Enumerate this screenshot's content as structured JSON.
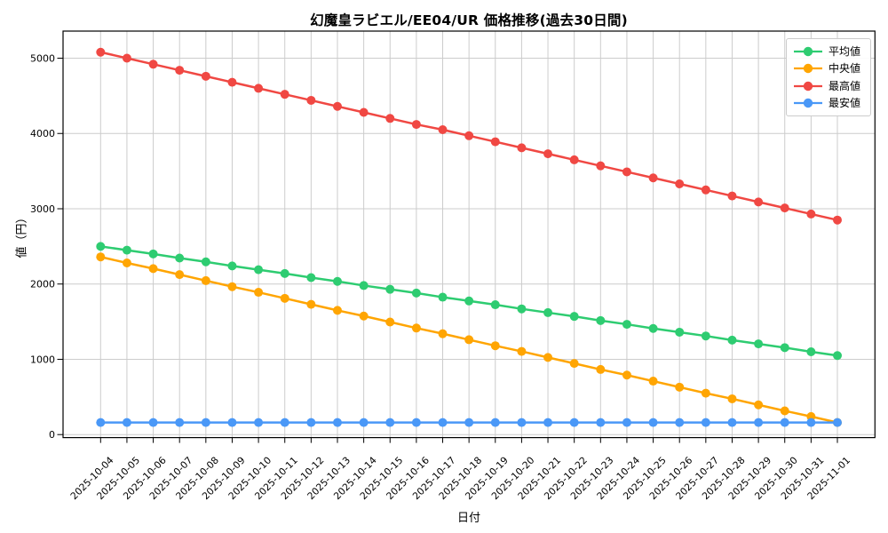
{
  "chart_data": {
    "type": "line",
    "title": "幻魔皇ラビエル/EE04/UR 価格推移(過去30日間)",
    "xlabel": "日付",
    "ylabel": "値（円）",
    "x": [
      "2025-10-04",
      "2025-10-05",
      "2025-10-06",
      "2025-10-07",
      "2025-10-08",
      "2025-10-09",
      "2025-10-10",
      "2025-10-11",
      "2025-10-12",
      "2025-10-13",
      "2025-10-14",
      "2025-10-15",
      "2025-10-16",
      "2025-10-17",
      "2025-10-18",
      "2025-10-19",
      "2025-10-20",
      "2025-10-21",
      "2025-10-22",
      "2025-10-23",
      "2025-10-24",
      "2025-10-25",
      "2025-10-26",
      "2025-10-27",
      "2025-10-28",
      "2025-10-29",
      "2025-10-30",
      "2025-10-31",
      "2025-11-01"
    ],
    "y_ticks": [
      0,
      1000,
      2000,
      3000,
      4000,
      5000
    ],
    "ylim": [
      -40,
      5360
    ],
    "grid": true,
    "legend_position": "upper right",
    "series": [
      {
        "id": "average",
        "name": "平均値",
        "color": "#2ecc71",
        "values": [
          2500,
          2450,
          2400,
          2345,
          2295,
          2240,
          2190,
          2140,
          2085,
          2035,
          1980,
          1930,
          1880,
          1825,
          1775,
          1725,
          1670,
          1620,
          1570,
          1515,
          1465,
          1410,
          1360,
          1310,
          1255,
          1205,
          1155,
          1100,
          1050
        ]
      },
      {
        "id": "median",
        "name": "中央値",
        "color": "#ffa502",
        "values": [
          2360,
          2280,
          2205,
          2125,
          2045,
          1965,
          1890,
          1810,
          1730,
          1650,
          1575,
          1495,
          1415,
          1340,
          1260,
          1180,
          1105,
          1025,
          945,
          865,
          790,
          710,
          630,
          550,
          475,
          395,
          315,
          240,
          160
        ]
      },
      {
        "id": "max",
        "name": "最高値",
        "color": "#f04843",
        "values": [
          5080,
          5000,
          4920,
          4840,
          4760,
          4680,
          4600,
          4520,
          4440,
          4360,
          4280,
          4200,
          4120,
          4050,
          3970,
          3890,
          3810,
          3730,
          3650,
          3570,
          3490,
          3410,
          3330,
          3250,
          3170,
          3090,
          3010,
          2930,
          2850
        ]
      },
      {
        "id": "min",
        "name": "最安値",
        "color": "#4a98f7",
        "values": [
          160,
          160,
          160,
          160,
          160,
          160,
          160,
          160,
          160,
          160,
          160,
          160,
          160,
          160,
          160,
          160,
          160,
          160,
          160,
          160,
          160,
          160,
          160,
          160,
          160,
          160,
          160,
          160,
          160
        ]
      }
    ],
    "style": {
      "grid_color": "#cccccc",
      "spine_color": "#000000",
      "plot_background": "#ffffff"
    }
  }
}
